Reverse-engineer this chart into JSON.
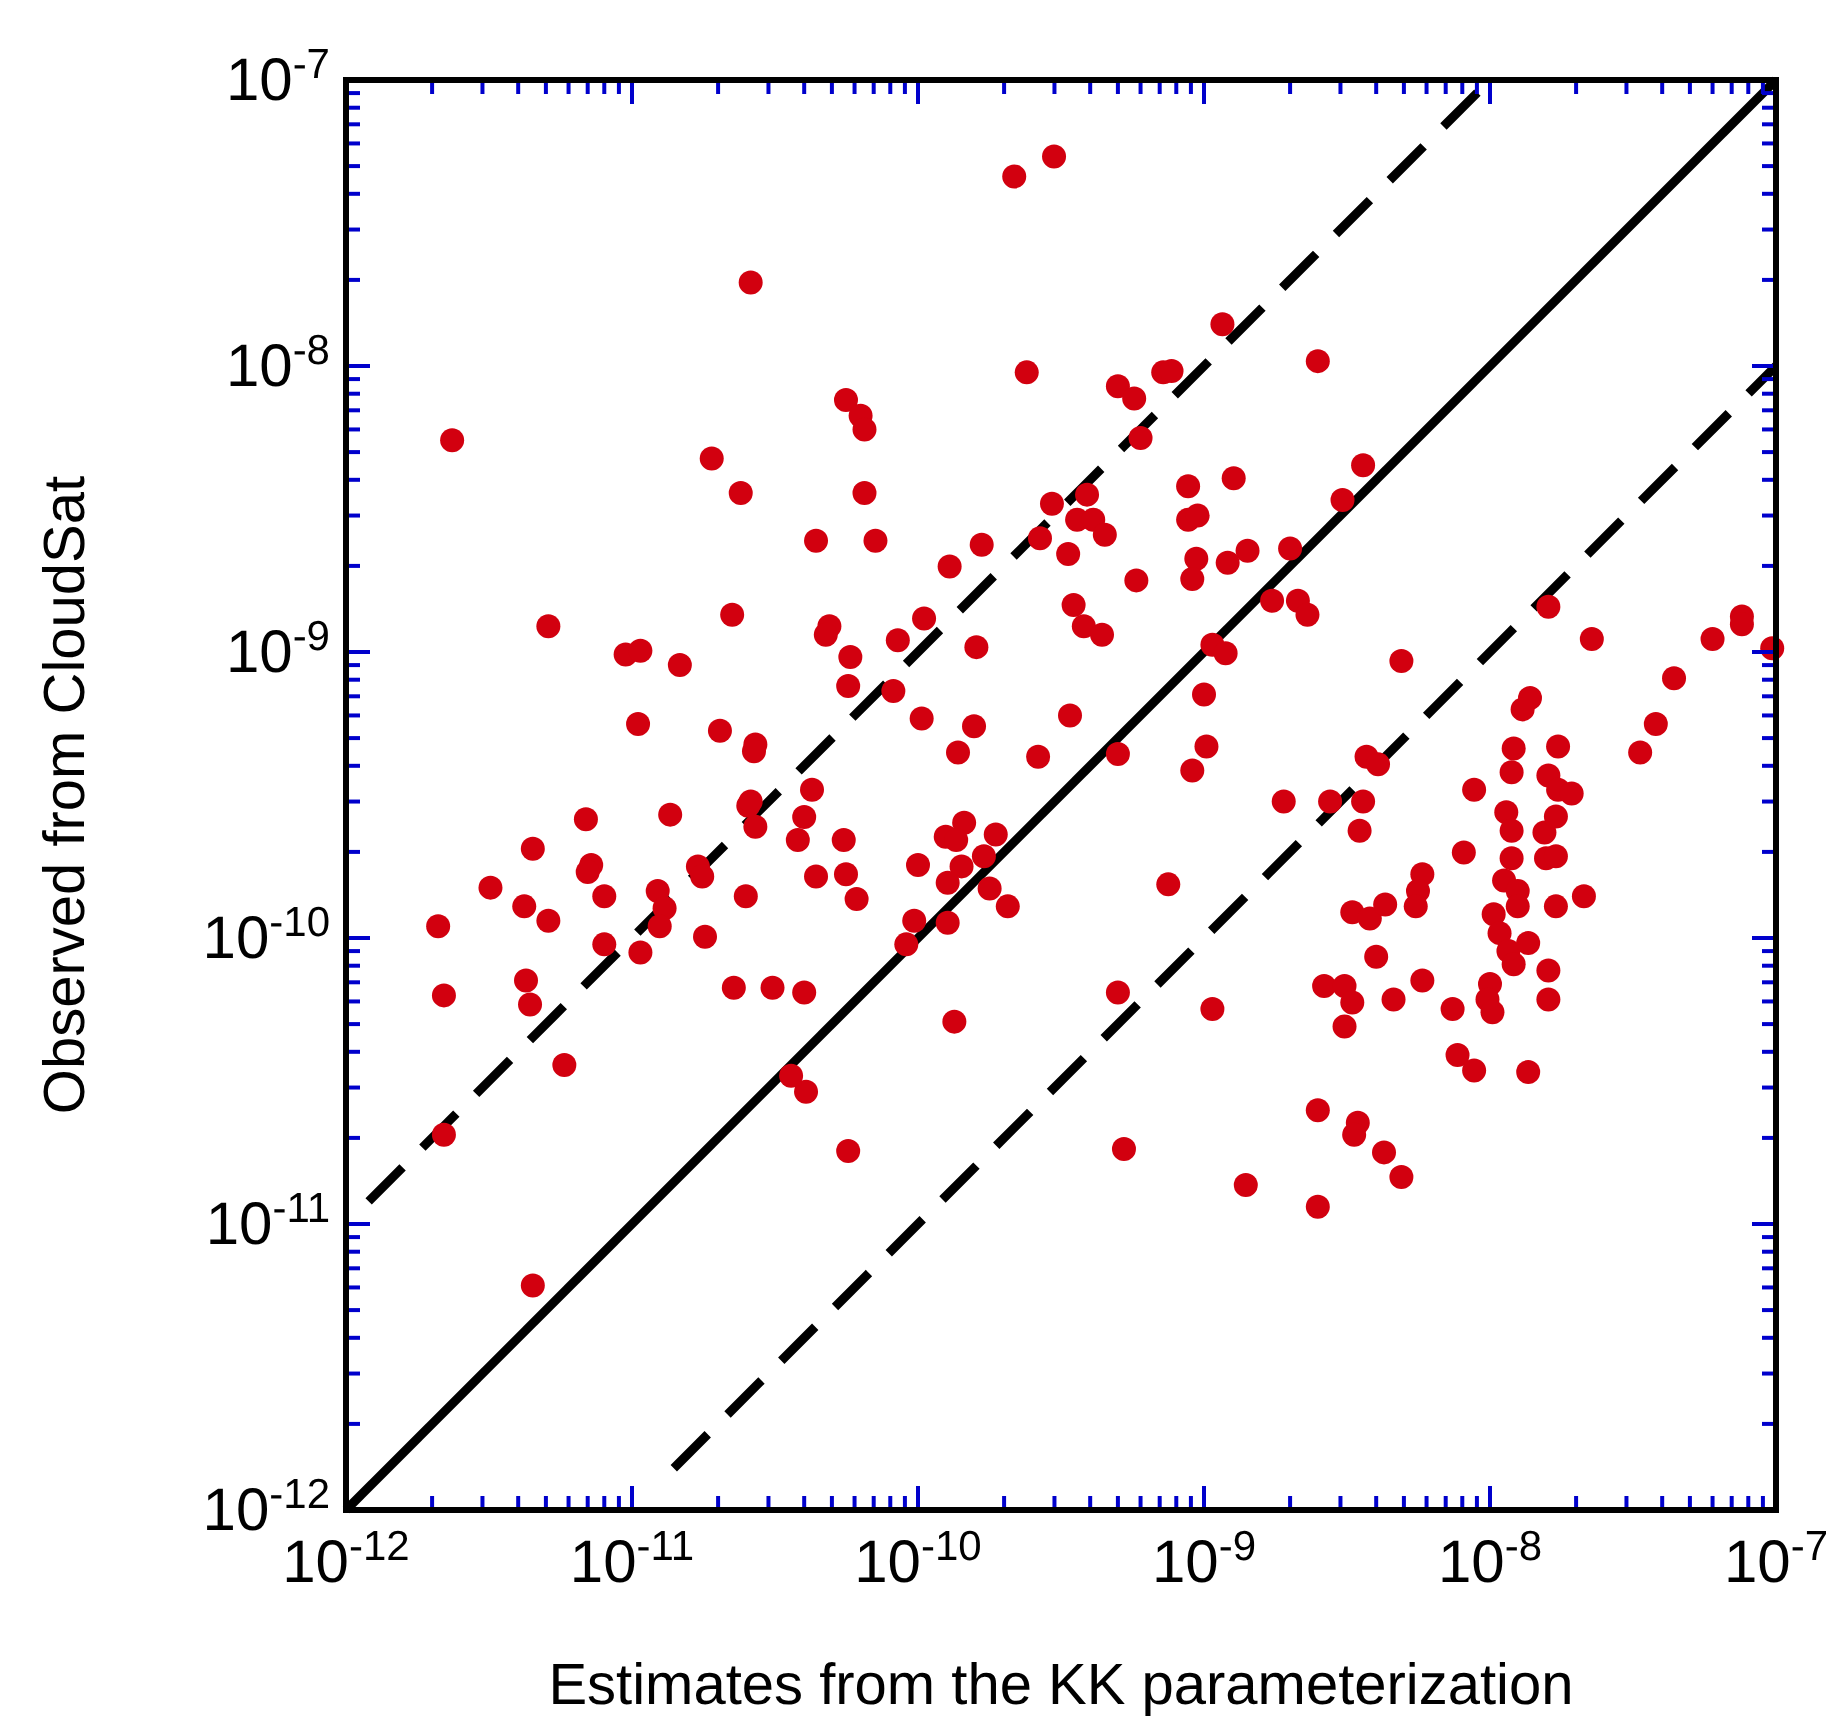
{
  "chart_data": {
    "type": "scatter",
    "xlabel": "Estimates from the KK parameterization",
    "ylabel": "Observed from CloudSat",
    "log": "xy",
    "xlim": [
      1e-12,
      1e-07
    ],
    "ylim": [
      1e-12,
      1e-07
    ],
    "xticks": [
      {
        "value": 1e-12,
        "label": "10$^{-12}$"
      },
      {
        "value": 2e-12,
        "label": null
      },
      {
        "value": 3e-12,
        "label": null
      },
      {
        "value": 4e-12,
        "label": null
      },
      {
        "value": 5e-12,
        "label": null
      },
      {
        "value": 6e-12,
        "label": null
      },
      {
        "value": 7e-12,
        "label": null
      },
      {
        "value": 8e-12,
        "label": null
      },
      {
        "value": 9e-12,
        "label": null
      },
      {
        "value": 1e-11,
        "label": "10$^{-11}$"
      },
      {
        "value": 2e-11,
        "label": null
      },
      {
        "value": 3e-11,
        "label": null
      },
      {
        "value": 4e-11,
        "label": null
      },
      {
        "value": 5e-11,
        "label": null
      },
      {
        "value": 6e-11,
        "label": null
      },
      {
        "value": 7e-11,
        "label": null
      },
      {
        "value": 8e-11,
        "label": null
      },
      {
        "value": 9e-11,
        "label": null
      },
      {
        "value": 1e-10,
        "label": "10$^{-10}$"
      },
      {
        "value": 2e-10,
        "label": null
      },
      {
        "value": 3e-10,
        "label": null
      },
      {
        "value": 4e-10,
        "label": null
      },
      {
        "value": 5e-10,
        "label": null
      },
      {
        "value": 6e-10,
        "label": null
      },
      {
        "value": 7e-10,
        "label": null
      },
      {
        "value": 8e-10,
        "label": null
      },
      {
        "value": 9e-10,
        "label": null
      },
      {
        "value": 1e-09,
        "label": "10$^{-9}$"
      },
      {
        "value": 2e-09,
        "label": null
      },
      {
        "value": 3e-09,
        "label": null
      },
      {
        "value": 4e-09,
        "label": null
      },
      {
        "value": 5e-09,
        "label": null
      },
      {
        "value": 6e-09,
        "label": null
      },
      {
        "value": 7e-09,
        "label": null
      },
      {
        "value": 8e-09,
        "label": null
      },
      {
        "value": 9e-09,
        "label": null
      },
      {
        "value": 1e-08,
        "label": "10$^{-8}$"
      },
      {
        "value": 2e-08,
        "label": null
      },
      {
        "value": 3e-08,
        "label": null
      },
      {
        "value": 4e-08,
        "label": null
      },
      {
        "value": 5e-08,
        "label": null
      },
      {
        "value": 6e-08,
        "label": null
      },
      {
        "value": 7e-08,
        "label": null
      },
      {
        "value": 8e-08,
        "label": null
      },
      {
        "value": 9e-08,
        "label": null
      },
      {
        "value": 1e-07,
        "label": "10$^{-7}$"
      }
    ],
    "yticks": [
      {
        "value": 1e-12,
        "label": "10$^{-12}$"
      },
      {
        "value": 2e-12,
        "label": null
      },
      {
        "value": 3e-12,
        "label": null
      },
      {
        "value": 4e-12,
        "label": null
      },
      {
        "value": 5e-12,
        "label": null
      },
      {
        "value": 6e-12,
        "label": null
      },
      {
        "value": 7e-12,
        "label": null
      },
      {
        "value": 8e-12,
        "label": null
      },
      {
        "value": 9e-12,
        "label": null
      },
      {
        "value": 1e-11,
        "label": "10$^{-11}$"
      },
      {
        "value": 2e-11,
        "label": null
      },
      {
        "value": 3e-11,
        "label": null
      },
      {
        "value": 4e-11,
        "label": null
      },
      {
        "value": 5e-11,
        "label": null
      },
      {
        "value": 6e-11,
        "label": null
      },
      {
        "value": 7e-11,
        "label": null
      },
      {
        "value": 8e-11,
        "label": null
      },
      {
        "value": 9e-11,
        "label": null
      },
      {
        "value": 1e-10,
        "label": "10$^{-10}$"
      },
      {
        "value": 2e-10,
        "label": null
      },
      {
        "value": 3e-10,
        "label": null
      },
      {
        "value": 4e-10,
        "label": null
      },
      {
        "value": 5e-10,
        "label": null
      },
      {
        "value": 6e-10,
        "label": null
      },
      {
        "value": 7e-10,
        "label": null
      },
      {
        "value": 8e-10,
        "label": null
      },
      {
        "value": 9e-10,
        "label": null
      },
      {
        "value": 1e-09,
        "label": "10$^{-9}$"
      },
      {
        "value": 2e-09,
        "label": null
      },
      {
        "value": 3e-09,
        "label": null
      },
      {
        "value": 4e-09,
        "label": null
      },
      {
        "value": 5e-09,
        "label": null
      },
      {
        "value": 6e-09,
        "label": null
      },
      {
        "value": 7e-09,
        "label": null
      },
      {
        "value": 8e-09,
        "label": null
      },
      {
        "value": 9e-09,
        "label": null
      },
      {
        "value": 1e-08,
        "label": "10$^{-8}$"
      },
      {
        "value": 2e-08,
        "label": null
      },
      {
        "value": 3e-08,
        "label": null
      },
      {
        "value": 4e-08,
        "label": null
      },
      {
        "value": 5e-08,
        "label": null
      },
      {
        "value": 6e-08,
        "label": null
      },
      {
        "value": 7e-08,
        "label": null
      },
      {
        "value": 8e-08,
        "label": null
      },
      {
        "value": 9e-08,
        "label": null
      },
      {
        "value": 1e-07,
        "label": "10$^{-7}$"
      }
    ],
    "series": [
      {
        "type": "line",
        "color": "#000000",
        "line_style": "solid",
        "x": [
          1e-12,
          1e-07
        ],
        "values": [
          1e-12,
          1e-07
        ]
      },
      {
        "type": "line",
        "color": "#000000",
        "line_style": "dashed",
        "x": [
          1.2e-12,
          1e-08
        ],
        "values": [
          1.2e-11,
          1e-07
        ]
      },
      {
        "type": "line",
        "color": "#000000",
        "line_style": "dashed",
        "x": [
          1.4e-11,
          1e-07
        ],
        "values": [
          1.4e-12,
          1e-08
        ]
      },
      {
        "marker": "circle",
        "color": "#d2000f",
        "x": [
          6.9e-12,
          1.36e-11,
          4.5e-12,
          7.2e-12,
          7e-12,
          3.2e-12,
          8e-12,
          4.2e-12,
          5.1e-12,
          2.1e-12,
          1.23e-11,
          1.3e-11,
          1.25e-11,
          1.7e-11,
          1.76e-11,
          2.5e-11,
          2.7e-11,
          2.55e-11,
          4e-11,
          3.8e-11,
          4.4e-11,
          8e-12,
          1.07e-11,
          1.8e-11,
          4.26e-12,
          2.2e-12,
          4.4e-12,
          2.27e-11,
          3.1e-11,
          4e-11,
          5.8e-12,
          2.2e-12,
          3.6e-11,
          4.06e-11,
          4.5e-12,
          5.7e-11,
          2.6e-11,
          2.35e-12,
          1.9e-11,
          2.4e-11,
          4.4e-11,
          2.24e-11,
          5.1e-12,
          9.5e-12,
          1.07e-11,
          1.47e-11,
          4.9e-11,
          4.76e-11,
          1.05e-11,
          2.03e-11,
          2.7e-11,
          2.67e-11,
          4.26e-11,
          2.6e-11,
          2.17e-10,
          2.99e-10,
          5.6e-11,
          6.3e-11,
          6.5e-11,
          2.4e-10,
          1.16e-09,
          2.5e-09,
          5e-10,
          5.7e-10,
          7.2e-10,
          7.7e-10,
          6e-10,
          6.5e-11,
          7.1e-11,
          2.94e-10,
          3.9e-10,
          3.6e-10,
          4.1e-10,
          4.5e-10,
          3.35e-10,
          2.67e-10,
          1.67e-10,
          1.29e-10,
          8.8e-10,
          1.27e-09,
          8.8e-10,
          9.5e-10,
          9.4e-10,
          9.1e-10,
          1.21e-09,
          1.42e-09,
          2e-09,
          1.73e-09,
          2.13e-09,
          2.3e-09,
          5.8e-10,
          3.5e-10,
          3.8e-10,
          4.4e-10,
          1.05e-10,
          8.5e-11,
          1.6e-10,
          5.8e-11,
          5.7e-11,
          8.2e-11,
          1.03e-10,
          1.57e-10,
          1.38e-10,
          2.63e-10,
          3.4e-10,
          5e-10,
          1e-09,
          1.02e-09,
          9.1e-10,
          1.07e-09,
          1.19e-09,
          1.9e-09,
          3.6e-09,
          3.05e-09,
          1.6e-08,
          2.27e-08,
          4.9e-09,
          6e-08,
          7.6e-08,
          7.6e-08,
          9.7e-08,
          4.4e-08,
          1.38e-08,
          1.3e-08,
          3.8e-08,
          1.21e-08,
          1.73e-08,
          3.35e-08,
          3.7e-09,
          4.06e-09,
          1.19e-08,
          1.6e-08,
          8.8e-09,
          1.73e-08,
          1.93e-08,
          2.76e-09,
          3.6e-09,
          1.45e-10,
          1.25e-10,
          1.36e-10,
          1.87e-10,
          5.5e-11,
          5.6e-11,
          6.1e-11,
          1e-10,
          1.42e-10,
          1.27e-10,
          1.7e-10,
          1.78e-10,
          2.06e-10,
          9.7e-11,
          1.27e-10,
          9.1e-11,
          7.5e-10,
          1.34e-10,
          5e-10,
          1.07e-09,
          5.25e-10,
          1.4e-09,
          2.5e-09,
          2.5e-09,
          3.5e-09,
          1.14e-08,
          1.19e-08,
          1.55e-08,
          1.7e-08,
          8.1e-09,
          1.19e-08,
          1.57e-08,
          1.7e-08,
          5.8e-09,
          5.6e-09,
          5.5e-09,
          1.12e-08,
          1.25e-08,
          1.25e-08,
          3.3e-09,
          3.8e-09,
          4.3e-09,
          1.7e-08,
          2.13e-08,
          1.03e-08,
          1.08e-08,
          1.16e-08,
          1.21e-08,
          1.36e-08,
          4e-09,
          1.6e-08,
          2.63e-09,
          3.1e-09,
          3.3e-09,
          4.6e-09,
          5.8e-09,
          7.4e-09,
          1e-08,
          9.8e-09,
          1.02e-08,
          1.6e-08,
          3.1e-09,
          7.7e-09,
          8.8e-09,
          1.36e-08,
          3.45e-09,
          3.35e-09,
          4.26e-09,
          4.9e-09
        ],
        "values": [
          2.6e-10,
          2.7e-10,
          2.05e-10,
          1.8e-10,
          1.7e-10,
          1.5e-10,
          1.4e-10,
          1.29e-10,
          1.15e-10,
          1.1e-10,
          1.46e-10,
          1.27e-10,
          1.1e-10,
          1.78e-10,
          1.64e-10,
          1.4e-10,
          2.45e-10,
          2.9e-10,
          2.65e-10,
          2.2e-10,
          1.64e-10,
          9.5e-11,
          8.9e-11,
          1.01e-10,
          7.1e-11,
          6.3e-11,
          5.85e-11,
          6.7e-11,
          6.7e-11,
          6.45e-11,
          3.6e-11,
          2.05e-11,
          3.3e-11,
          2.9e-11,
          6.1e-12,
          1.8e-11,
          1.96e-08,
          5.5e-09,
          4.75e-09,
          3.6e-09,
          2.45e-09,
          1.35e-09,
          1.23e-09,
          9.8e-10,
          1.01e-09,
          9e-10,
          1.23e-09,
          1.15e-09,
          5.6e-10,
          5.3e-10,
          4.75e-10,
          4.5e-10,
          3.3e-10,
          3e-10,
          4.6e-08,
          5.4e-08,
          7.6e-09,
          6.7e-09,
          6e-09,
          9.5e-09,
          1.4e-08,
          1.04e-08,
          8.5e-09,
          7.7e-09,
          9.5e-09,
          9.6e-09,
          5.6e-09,
          3.6e-09,
          2.45e-09,
          3.3e-09,
          3.55e-09,
          2.9e-09,
          2.9e-09,
          2.57e-09,
          2.2e-09,
          2.5e-09,
          2.37e-09,
          1.99e-09,
          3.8e-09,
          4.05e-09,
          2.9e-09,
          3e-09,
          2.12e-09,
          1.8e-09,
          2.05e-09,
          2.26e-09,
          2.3e-09,
          1.51e-09,
          1.51e-09,
          1.35e-09,
          1.78e-09,
          1.46e-09,
          1.23e-09,
          1.15e-09,
          1.31e-09,
          1.1e-09,
          1.04e-09,
          9.6e-10,
          7.6e-10,
          7.3e-10,
          5.85e-10,
          5.5e-10,
          4.45e-10,
          4.3e-10,
          6e-10,
          4.4e-10,
          7.1e-10,
          4.67e-10,
          3.85e-10,
          1.06e-09,
          9.9e-10,
          3e-10,
          4.5e-09,
          3.4e-09,
          1.44e-09,
          1.11e-09,
          9.3e-10,
          1.11e-09,
          1.33e-09,
          1.25e-09,
          1.03e-09,
          8.1e-10,
          6.9e-10,
          6.3e-10,
          5.6e-10,
          4.6e-10,
          4.67e-10,
          4.45e-10,
          4.3e-10,
          4.05e-10,
          3.8e-10,
          3.7e-10,
          3.3e-10,
          3.3e-10,
          3.2e-10,
          3e-10,
          3e-10,
          2.53e-10,
          2.26e-10,
          2.2e-10,
          2.3e-10,
          2.2e-10,
          1.67e-10,
          1.37e-10,
          1.8e-10,
          1.78e-10,
          1.56e-10,
          1.93e-10,
          1.49e-10,
          1.29e-10,
          1.15e-10,
          1.13e-10,
          9.5e-11,
          1.54e-10,
          5.1e-11,
          6.45e-11,
          5.65e-11,
          1.83e-11,
          1.37e-11,
          2.5e-11,
          1.15e-11,
          2.37e-10,
          2.75e-10,
          2.37e-10,
          2.34e-10,
          2.66e-10,
          1.99e-10,
          1.9e-10,
          1.9e-10,
          1.93e-10,
          1.67e-10,
          1.46e-10,
          1.29e-10,
          1.59e-10,
          1.46e-10,
          1.29e-10,
          1.23e-10,
          1.17e-10,
          1.31e-10,
          1.29e-10,
          1.4e-10,
          1.21e-10,
          1.04e-10,
          9e-11,
          8.1e-11,
          9.6e-11,
          8.6e-11,
          7.7e-11,
          6.8e-11,
          6.8e-11,
          5.95e-11,
          6.1e-11,
          7.1e-11,
          5.65e-11,
          6.9e-11,
          6.1e-11,
          5.5e-11,
          6.1e-11,
          4.9e-11,
          3.9e-11,
          3.44e-11,
          3.4e-11,
          2.26e-11,
          2.05e-11,
          1.78e-11,
          1.46e-11
        ]
      }
    ]
  }
}
